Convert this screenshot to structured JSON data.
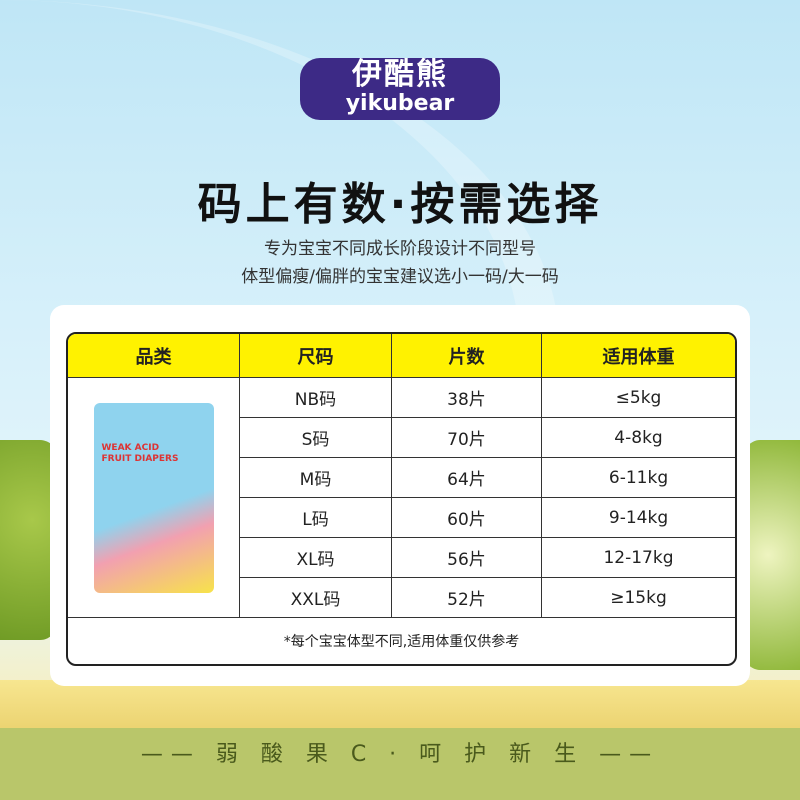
{
  "brand": {
    "logo_cn": "伊酷熊",
    "logo_en": "yikubear"
  },
  "headline": "码上有数·按需选择",
  "subtitle_1": "专为宝宝不同成长阶段设计不同型号",
  "subtitle_2": "体型偏瘦/偏胖的宝宝建议选小一码/大一码",
  "table": {
    "headers": [
      "品类",
      "尺码",
      "片数",
      "适用体重"
    ],
    "product_text": "WEAK ACID FRUIT DIAPERS",
    "rows": [
      {
        "size": "NB码",
        "count": "38片",
        "weight": "≤5kg"
      },
      {
        "size": "S码",
        "count": "70片",
        "weight": "4-8kg"
      },
      {
        "size": "M码",
        "count": "64片",
        "weight": "6-11kg"
      },
      {
        "size": "L码",
        "count": "60片",
        "weight": "9-14kg"
      },
      {
        "size": "XL码",
        "count": "56片",
        "weight": "12-17kg"
      },
      {
        "size": "XXL码",
        "count": "52片",
        "weight": "≥15kg"
      }
    ],
    "footnote": "*每个宝宝体型不同,适用体重仅供参考"
  },
  "slogan": "—— 弱 酸 果 C · 呵 护 新 生 ——",
  "colors": {
    "header_yellow": "#fff200",
    "logo_purple": "#3d2a86",
    "slogan": "#4a5a1c"
  }
}
